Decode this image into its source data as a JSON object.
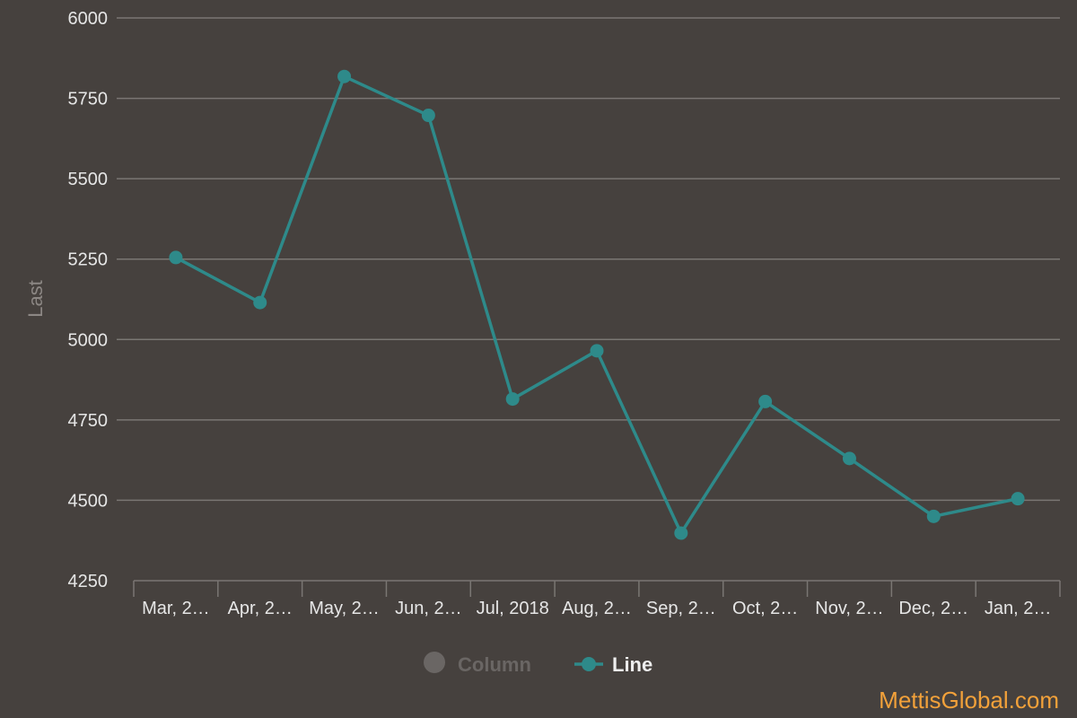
{
  "chart_data": {
    "type": "line",
    "categories": [
      "Mar, 2…",
      "Apr, 2…",
      "May, 2…",
      "Jun, 2…",
      "Jul, 2018",
      "Aug, 2…",
      "Sep, 2…",
      "Oct, 2…",
      "Nov, 2…",
      "Dec, 2…",
      "Jan, 2…"
    ],
    "series": [
      {
        "name": "Line",
        "color": "#2e8a8a",
        "values": [
          5255,
          5115,
          5818,
          5697,
          4815,
          4965,
          4398,
          4807,
          4630,
          4450,
          4505
        ]
      }
    ],
    "ylabel": "Last",
    "ylim": [
      4250,
      6000
    ],
    "yticks": [
      4250,
      4500,
      4750,
      5000,
      5250,
      5500,
      5750,
      6000
    ],
    "grid": true,
    "legend": {
      "placement": "bottom-center",
      "items": [
        {
          "label": "Column",
          "active": false,
          "color": "#6a6664"
        },
        {
          "label": "Line",
          "active": true,
          "color": "#2e8a8a"
        }
      ]
    }
  },
  "watermark": "MettisGlobal.com",
  "colors": {
    "background": "#46413e",
    "grid": "#7a7673",
    "line": "#2e8a8a"
  }
}
